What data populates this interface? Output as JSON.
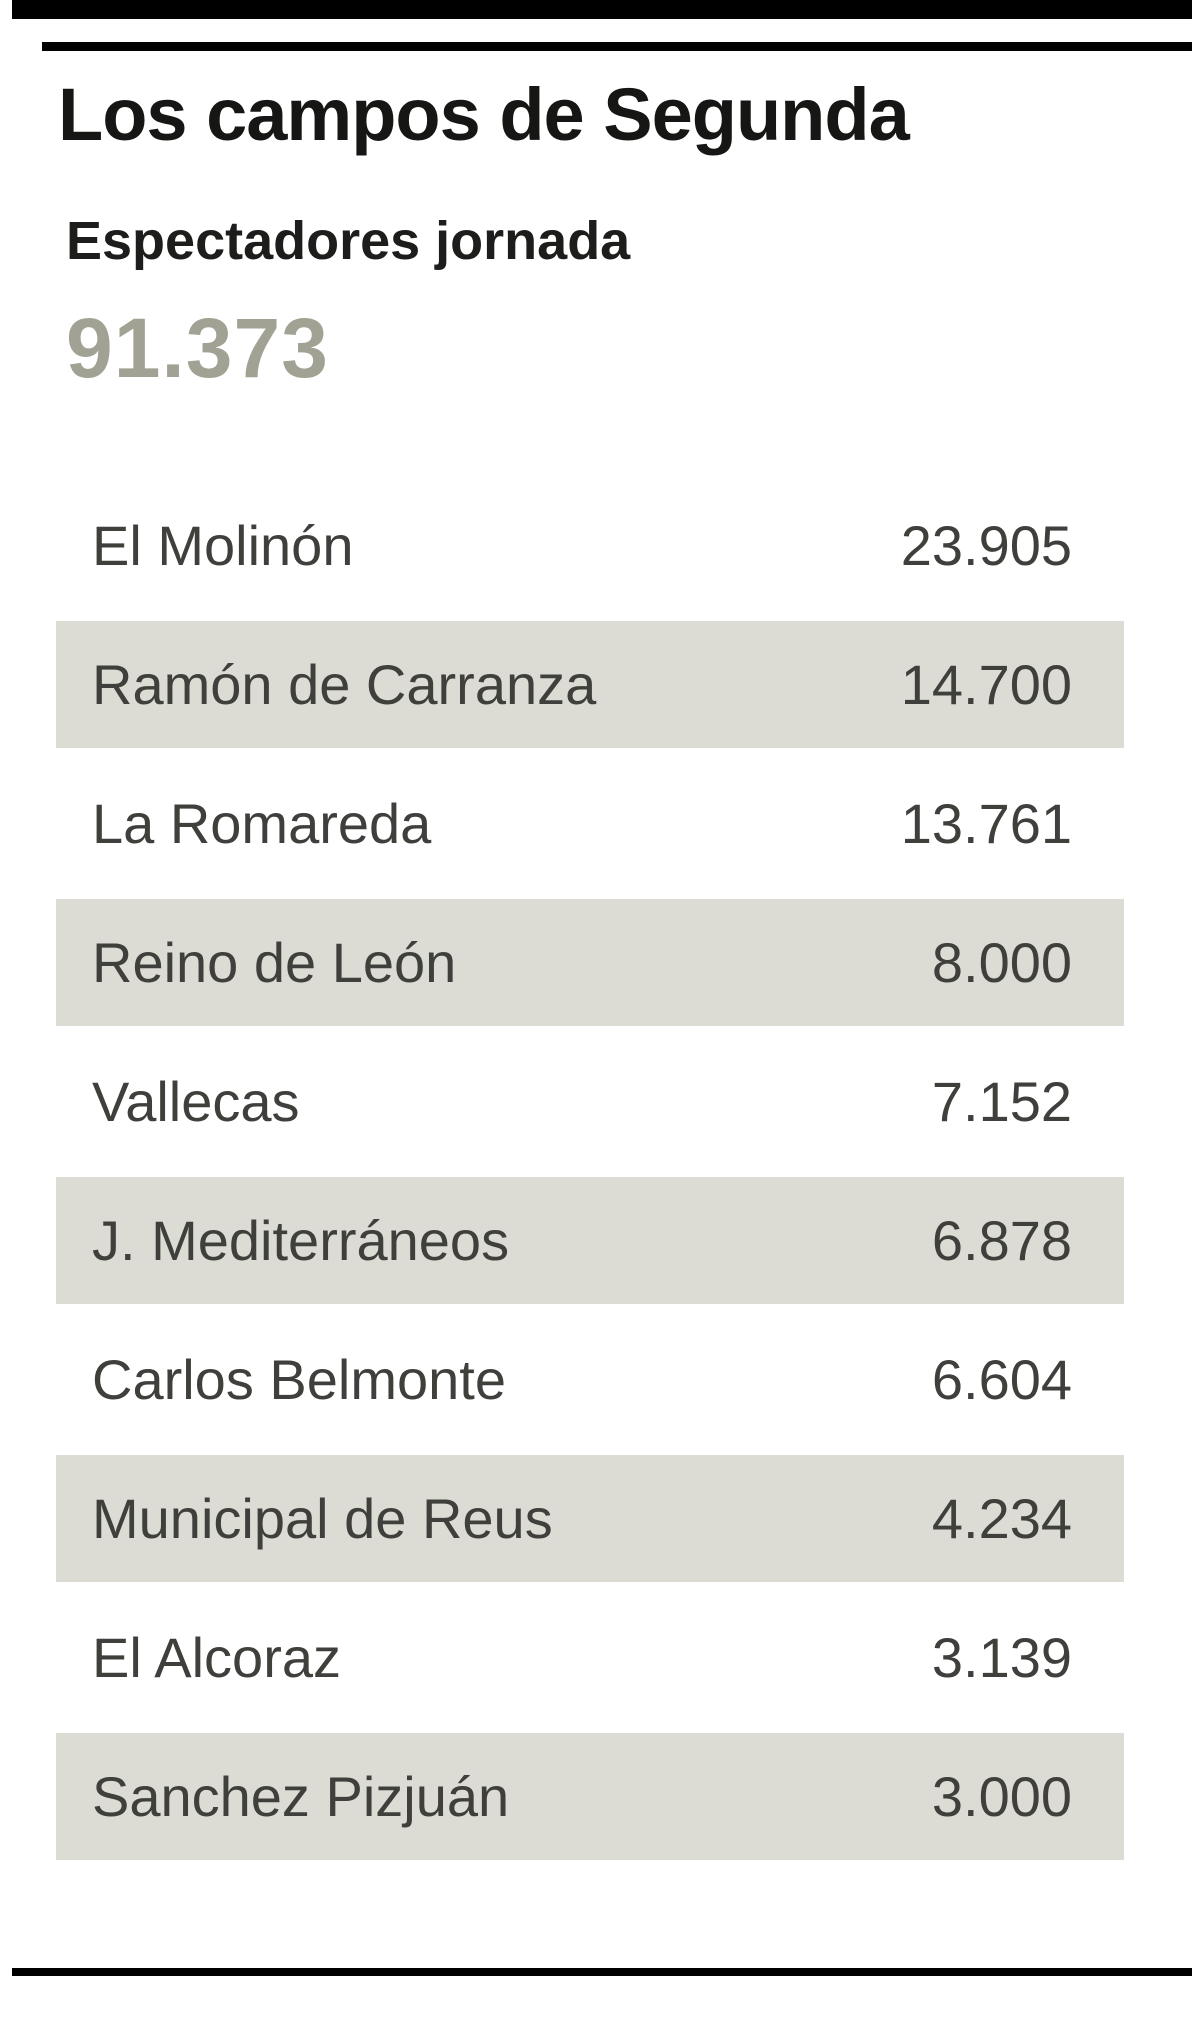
{
  "header": {
    "title": "Los campos de Segunda",
    "subtitle": "Espectadores jornada",
    "total": "91.373"
  },
  "colors": {
    "title_text": "#161614",
    "body_text": "#3f3f3c",
    "total_accent": "#a2a294",
    "row_shade": "#dcdcd5",
    "rule": "#000000",
    "background": "#ffffff"
  },
  "table": {
    "rows": [
      {
        "name": "El Molinón",
        "value": "23.905"
      },
      {
        "name": "Ramón de Carranza",
        "value": "14.700"
      },
      {
        "name": "La Romareda",
        "value": "13.761"
      },
      {
        "name": "Reino de León",
        "value": "8.000"
      },
      {
        "name": "Vallecas",
        "value": "7.152"
      },
      {
        "name": "J. Mediterráneos",
        "value": "6.878"
      },
      {
        "name": "Carlos Belmonte",
        "value": "6.604"
      },
      {
        "name": "Municipal de Reus",
        "value": "4.234"
      },
      {
        "name": "El Alcoraz",
        "value": "3.139"
      },
      {
        "name": "Sanchez Pizjuán",
        "value": "3.000"
      }
    ]
  },
  "chart_data": {
    "type": "table",
    "title": "Los campos de Segunda",
    "subtitle": "Espectadores jornada",
    "total": 91373,
    "categories": [
      "El Molinón",
      "Ramón de Carranza",
      "La Romareda",
      "Reino de León",
      "Vallecas",
      "J. Mediterráneos",
      "Carlos Belmonte",
      "Municipal de Reus",
      "El Alcoraz",
      "Sanchez Pizjuán"
    ],
    "values": [
      23905,
      14700,
      13761,
      8000,
      7152,
      6878,
      6604,
      4234,
      3139,
      3000
    ],
    "value_label": "Espectadores",
    "layout": "alternating shaded rows, values right-aligned"
  }
}
